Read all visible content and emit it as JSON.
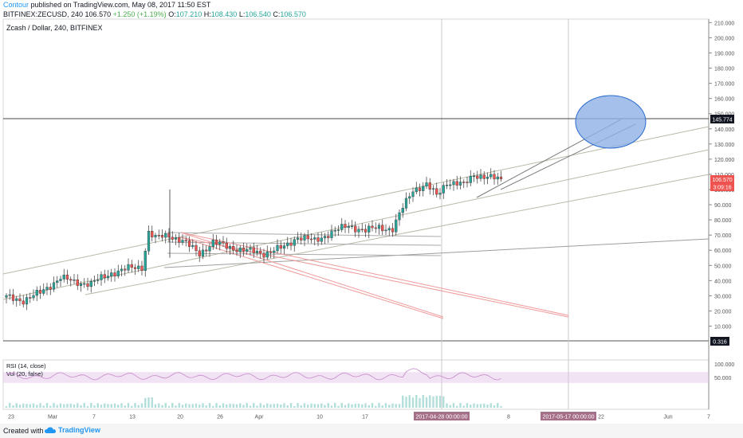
{
  "header": {
    "author": "Contour",
    "published": "published on TradingView.com, May 08, 2017 11:50 EST",
    "symbol": "BITFINEX:ZECUSD, 240",
    "last": "106.570",
    "change": "+1.250 (+1.19%)",
    "open_label": "O:",
    "open": "107.210",
    "high_label": "H:",
    "high": "108.430",
    "low_label": "L:",
    "low": "106.540",
    "close_label": "C:",
    "close": "106.570"
  },
  "chart_data": [
    {
      "type": "candlestick",
      "title": "Zcash / Dollar, 240, BITFINEX",
      "x_ticks": [
        "23",
        "Mar",
        "7",
        "13",
        "20",
        "26",
        "Apr",
        "10",
        "17",
        "2017-04-28 00:00:00",
        "8",
        "2017-05-17 00:00:00",
        "22",
        "Jun",
        "7"
      ],
      "y_ticks": [
        "10.000",
        "20.000",
        "30.000",
        "40.000",
        "50.000",
        "60.000",
        "70.000",
        "80.000",
        "90.000",
        "100.000",
        "110.000",
        "120.000",
        "130.000",
        "140.000",
        "150.000",
        "160.000",
        "170.000",
        "180.000",
        "190.000",
        "200.000",
        "210.000"
      ],
      "ylim": [
        0,
        212
      ],
      "price_labels": {
        "horizontal_line": "145.774",
        "last_price": "106.570",
        "countdown": "3:09:16",
        "lower_line": "0.316"
      },
      "colors": {
        "up": "#26a69a",
        "down": "#ef5350",
        "trend_lines": "#9e9e9e",
        "fan_lines": "#ef9a9a",
        "ellipse": "#2a6ccf"
      },
      "price_path": [
        [
          0,
          29
        ],
        [
          5,
          27
        ],
        [
          10,
          32
        ],
        [
          16,
          42
        ],
        [
          20,
          39
        ],
        [
          25,
          38
        ],
        [
          31,
          45
        ],
        [
          36,
          48
        ],
        [
          40,
          49
        ],
        [
          42,
          72
        ],
        [
          44,
          68
        ],
        [
          48,
          70
        ],
        [
          52,
          66
        ],
        [
          57,
          58
        ],
        [
          61,
          65
        ],
        [
          66,
          62
        ],
        [
          70,
          60
        ],
        [
          76,
          58
        ],
        [
          82,
          62
        ],
        [
          86,
          69
        ],
        [
          91,
          66
        ],
        [
          96,
          72
        ],
        [
          101,
          76
        ],
        [
          106,
          73
        ],
        [
          110,
          75
        ],
        [
          114,
          74
        ],
        [
          117,
          88
        ],
        [
          120,
          100
        ],
        [
          124,
          103
        ],
        [
          127,
          96
        ],
        [
          130,
          105
        ],
        [
          135,
          103
        ],
        [
          138,
          110
        ],
        [
          142,
          108
        ],
        [
          146,
          106.57
        ]
      ],
      "volume_label": "Vol (20, false)"
    },
    {
      "type": "line",
      "title": "RSI (14, close)",
      "y_ticks": [
        "50.000",
        "100.000"
      ],
      "ylim": [
        0,
        100
      ]
    }
  ]
}
